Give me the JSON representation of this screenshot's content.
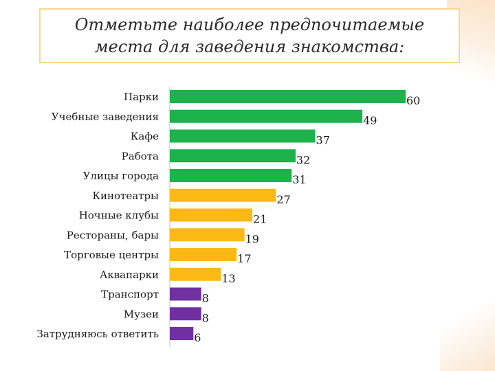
{
  "title": "Отметьте наиболее предпочитаемые\nместа для заведения знакомства:",
  "chart_data": {
    "type": "bar",
    "orientation": "horizontal",
    "title": "Отметьте наиболее предпочитаемые места для заведения знакомства:",
    "categories": [
      "Парки",
      "Учебные заведения",
      "Кафе",
      "Работа",
      "Улицы города",
      "Кинотеатры",
      "Ночные клубы",
      "Рестораны, бары",
      "Торговые центры",
      "Аквапарки",
      "Транспорт",
      "Музеи",
      "Затрудняюсь ответить"
    ],
    "values": [
      60,
      49,
      37,
      32,
      31,
      27,
      21,
      19,
      17,
      13,
      8,
      8,
      6
    ],
    "value_labels": [
      "60",
      "49",
      "37",
      "32",
      "31",
      "27",
      "21",
      "19",
      "17",
      "13",
      "8",
      "8",
      "6"
    ],
    "colors": [
      "#1db24b",
      "#1db24b",
      "#1db24b",
      "#1db24b",
      "#1db24b",
      "#fbb917",
      "#fbb917",
      "#fbb917",
      "#fbb917",
      "#fbb917",
      "#7030a0",
      "#7030a0",
      "#7030a0"
    ],
    "xlim": [
      0,
      60
    ],
    "grid": false,
    "legend": "none"
  }
}
